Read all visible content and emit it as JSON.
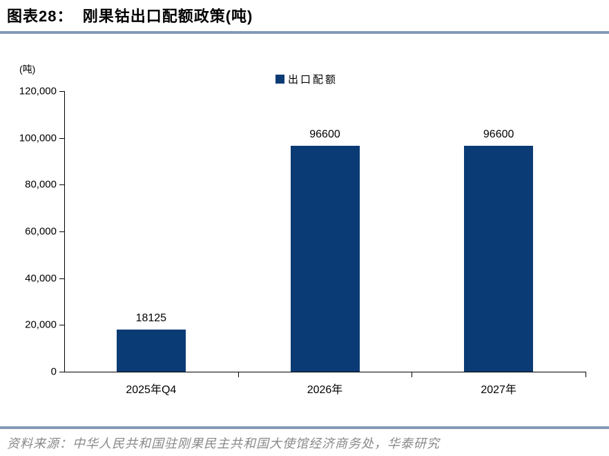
{
  "header": {
    "title": "图表28：  刚果钴出口配额政策(吨)"
  },
  "chart": {
    "unit_label": "(吨)",
    "legend_label": "出口配额"
  },
  "colors": {
    "bar": "#0B3B74",
    "legend_swatch": "#0B3B74",
    "rule": "#8299B5",
    "axis": "#000000"
  },
  "chart_data": {
    "type": "bar",
    "title": "刚果钴出口配额政策(吨)",
    "series_name": "出口配额",
    "categories": [
      "2025年Q4",
      "2026年",
      "2027年"
    ],
    "values": [
      18125,
      96600,
      96600
    ],
    "data_labels": [
      "18125",
      "96600",
      "96600"
    ],
    "xlabel": "",
    "ylabel": "(吨)",
    "ylim": [
      0,
      120000
    ],
    "ytick_step": 20000,
    "ytick_labels": [
      "0",
      "20,000",
      "40,000",
      "60,000",
      "80,000",
      "100,000",
      "120,000"
    ],
    "grid": false,
    "legend_position": "top-center",
    "bar_color": "#0B3B74"
  },
  "footer": {
    "source": "资料来源：中华人民共和国驻刚果民主共和国大使馆经济商务处，华泰研究"
  }
}
